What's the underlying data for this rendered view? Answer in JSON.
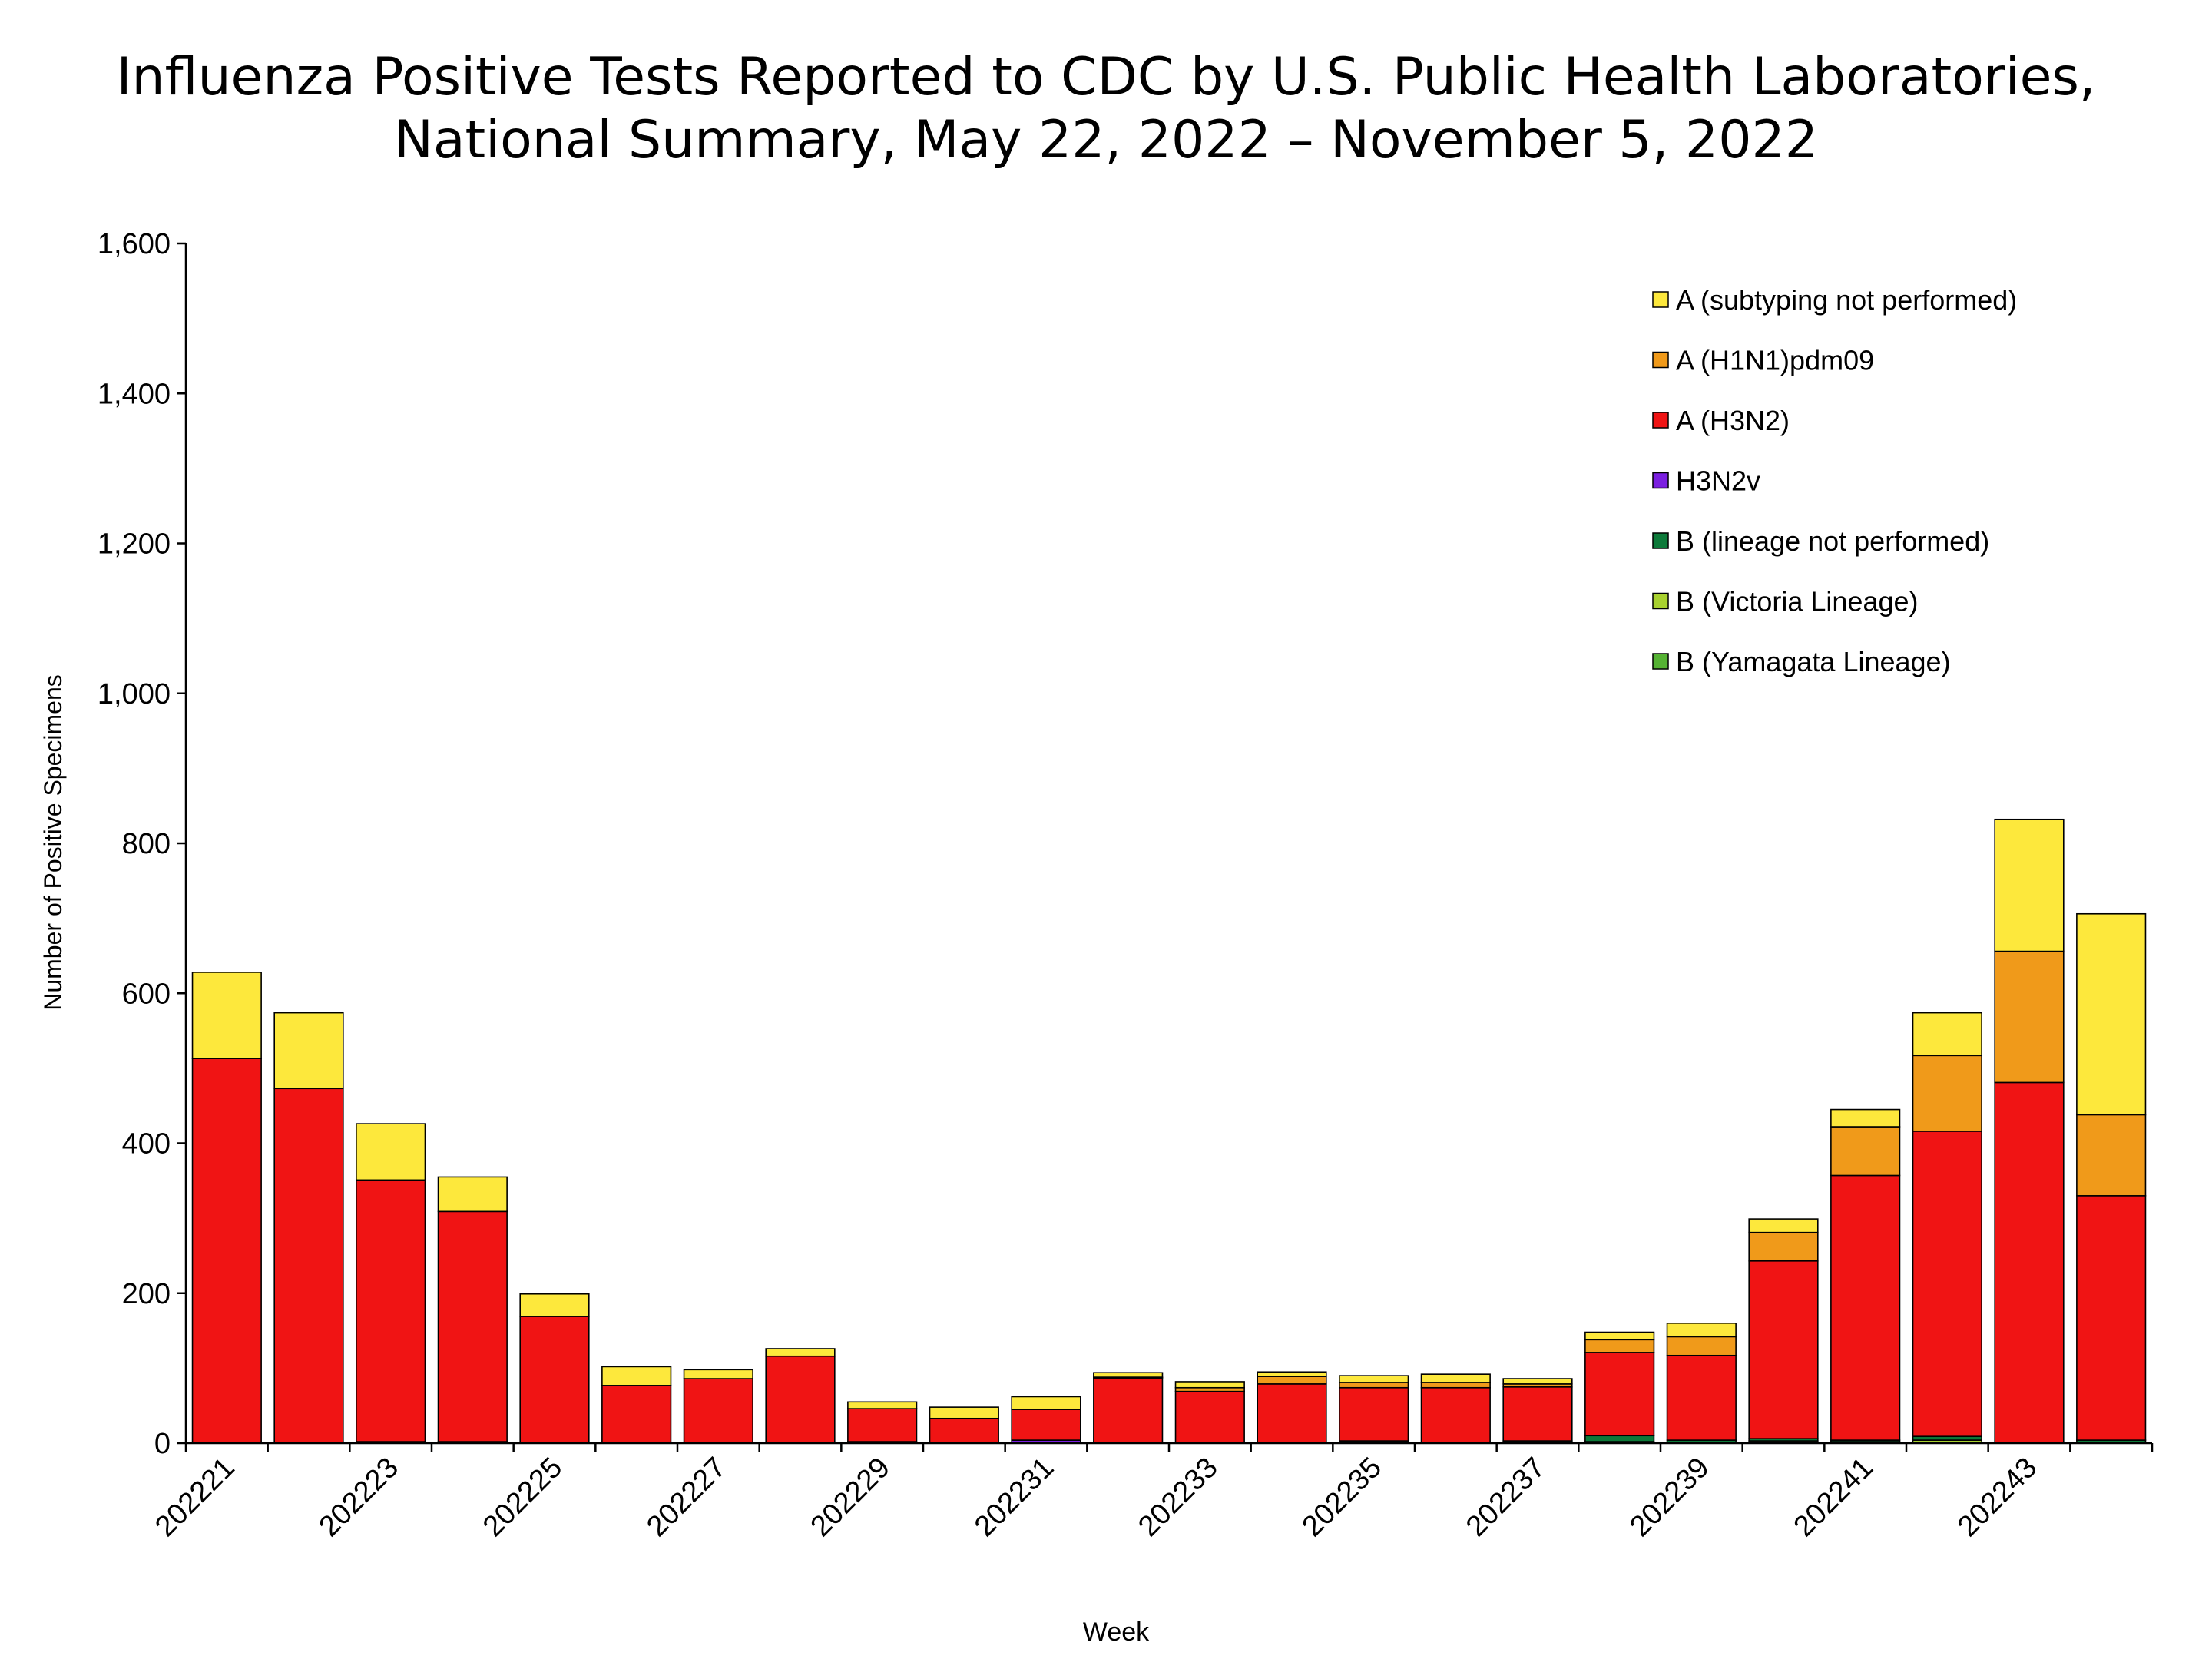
{
  "title": {
    "line1": "Influenza Positive Tests Reported to CDC by U.S. Public Health Laboratories,",
    "line2": "National Summary, May 22, 2022 – November 5, 2022"
  },
  "chart_data": {
    "type": "bar",
    "stacked": true,
    "xlabel": "Week",
    "ylabel": "Number of Positive Specimens",
    "ylim": [
      0,
      1600
    ],
    "yticks": [
      0,
      200,
      400,
      600,
      800,
      1000,
      1200,
      1400,
      1600
    ],
    "ytick_labels": [
      "0",
      "200",
      "400",
      "600",
      "800",
      "1,000",
      "1,200",
      "1,400",
      "1,600"
    ],
    "categories": [
      "202221",
      "202222",
      "202223",
      "202224",
      "202225",
      "202226",
      "202227",
      "202228",
      "202229",
      "202230",
      "202231",
      "202232",
      "202233",
      "202234",
      "202235",
      "202236",
      "202237",
      "202238",
      "202239",
      "202240",
      "202241",
      "202242",
      "202243",
      "202244"
    ],
    "xtick_labels": [
      "202221",
      "202223",
      "202225",
      "202227",
      "202229",
      "202231",
      "202233",
      "202235",
      "202237",
      "202239",
      "202241",
      "202243"
    ],
    "grid": false,
    "legend_position": "top-right",
    "series": [
      {
        "name": "B (Yamagata Lineage)",
        "color": "#55B233",
        "values": [
          0,
          0,
          0,
          0,
          0,
          0,
          0,
          0,
          0,
          0,
          0,
          0,
          0,
          0,
          0,
          0,
          0,
          0,
          0,
          0,
          0,
          0,
          0,
          0
        ]
      },
      {
        "name": "B (Victoria Lineage)",
        "color": "#A8D12F",
        "values": [
          0,
          0,
          0,
          0,
          0,
          0,
          0,
          0,
          0,
          0,
          0,
          0,
          0,
          0,
          0,
          0,
          0,
          2,
          1,
          3,
          2,
          4,
          0,
          1
        ]
      },
      {
        "name": "B (lineage not performed)",
        "color": "#0D7A3A",
        "values": [
          1,
          1,
          2,
          2,
          1,
          1,
          0,
          1,
          2,
          1,
          1,
          1,
          1,
          1,
          3,
          1,
          3,
          8,
          3,
          3,
          2,
          5,
          1,
          3
        ]
      },
      {
        "name": "H3N2v",
        "color": "#7B1FE0",
        "values": [
          0,
          0,
          0,
          0,
          0,
          0,
          0,
          0,
          0,
          0,
          3,
          0,
          0,
          0,
          0,
          0,
          0,
          0,
          0,
          0,
          0,
          0,
          0,
          0
        ]
      },
      {
        "name": "A (H3N2)",
        "color": "#F01414",
        "values": [
          512,
          472,
          349,
          307,
          168,
          76,
          86,
          115,
          44,
          32,
          41,
          86,
          68,
          78,
          71,
          73,
          72,
          111,
          113,
          237,
          353,
          407,
          480,
          326
        ]
      },
      {
        "name": "A (H1N1)pdm09",
        "color": "#F09A1A",
        "values": [
          0,
          0,
          0,
          0,
          0,
          0,
          0,
          0,
          0,
          0,
          0,
          1,
          5,
          10,
          7,
          7,
          4,
          17,
          25,
          38,
          65,
          101,
          175,
          108
        ]
      },
      {
        "name": "A (subtyping not performed)",
        "color": "#FDE83C",
        "values": [
          115,
          101,
          75,
          46,
          30,
          25,
          12,
          10,
          9,
          15,
          17,
          6,
          8,
          6,
          9,
          11,
          7,
          10,
          18,
          18,
          23,
          57,
          176,
          268
        ]
      }
    ]
  }
}
